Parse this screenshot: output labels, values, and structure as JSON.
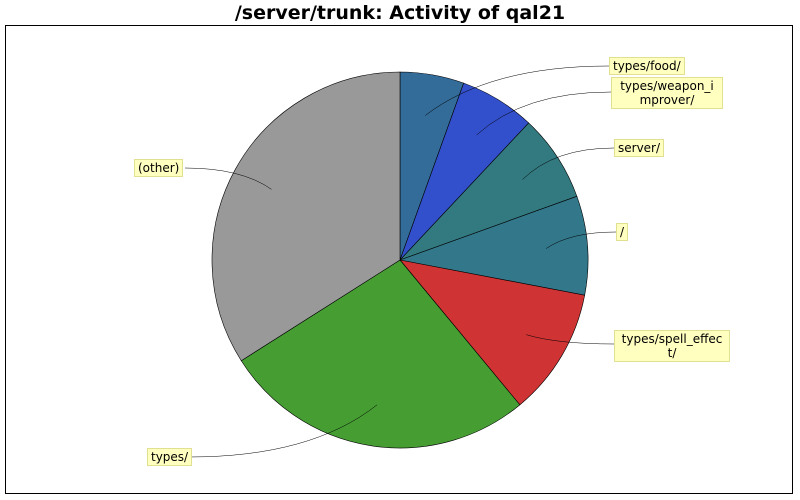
{
  "chart_data": {
    "type": "pie",
    "title": "/server/trunk: Activity of qal21",
    "slices": [
      {
        "label": "types/food/",
        "value": 5.5,
        "color": "#336b99"
      },
      {
        "label": "types/weapon_improver/",
        "value": 6.5,
        "color": "#3350cc"
      },
      {
        "label": "server/",
        "value": 7.5,
        "color": "#337a80"
      },
      {
        "label": "/",
        "value": 8.5,
        "color": "#33778b"
      },
      {
        "label": "types/spell_effect/",
        "value": 11.0,
        "color": "#d03333"
      },
      {
        "label": "types/",
        "value": 27.0,
        "color": "#469e33"
      },
      {
        "label": "(other)",
        "value": 34.0,
        "color": "#999999"
      }
    ]
  },
  "labels": {
    "food": "types/food/",
    "weapon": "types/weapon_improver/",
    "server": "server/",
    "root": "/",
    "spell": "types/spell_effect/",
    "types": "types/",
    "other": "(other)"
  }
}
